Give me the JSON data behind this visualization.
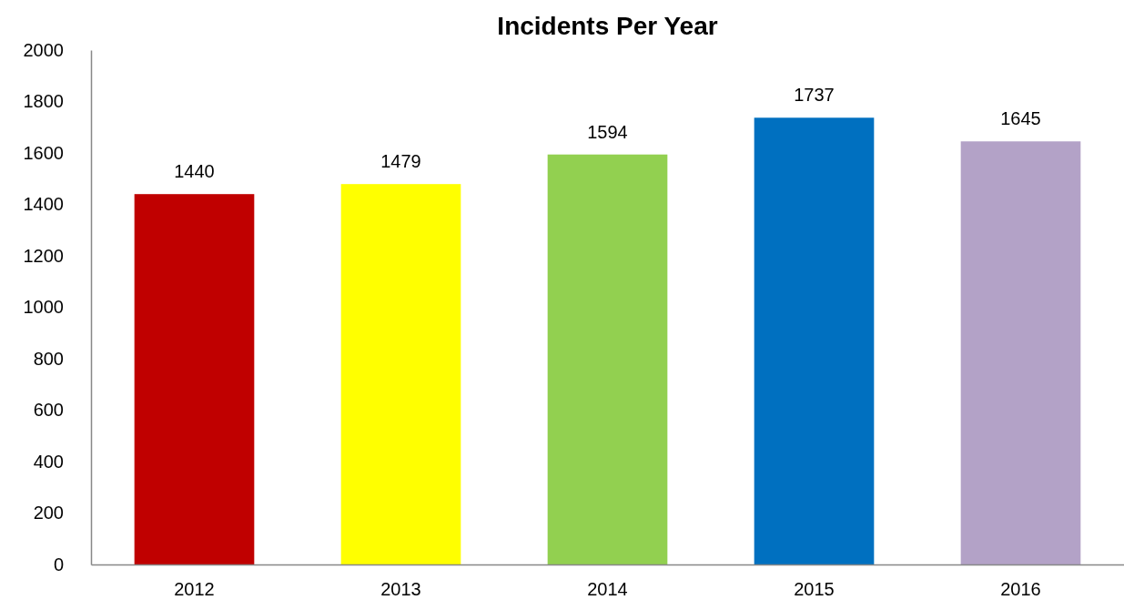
{
  "chart_data": {
    "type": "bar",
    "title": "Incidents Per Year",
    "categories": [
      "2012",
      "2013",
      "2014",
      "2015",
      "2016"
    ],
    "values": [
      1440,
      1479,
      1594,
      1737,
      1645
    ],
    "colors": [
      "#c00000",
      "#ffff00",
      "#92d050",
      "#0070c0",
      "#b3a2c7"
    ],
    "ylim": [
      0,
      2000
    ],
    "yticks": [
      0,
      200,
      400,
      600,
      800,
      1000,
      1200,
      1400,
      1600,
      1800,
      2000
    ],
    "grid": false,
    "data_labels": true
  }
}
